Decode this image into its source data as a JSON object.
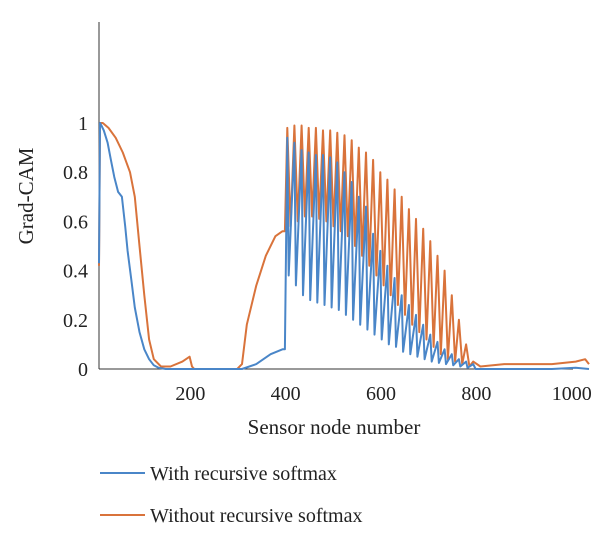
{
  "chart_data": {
    "type": "line",
    "title": "",
    "xlabel": "Sensor node number",
    "ylabel": "Grad-CAM",
    "xlim": [
      0,
      1030
    ],
    "ylim": [
      0,
      1.3
    ],
    "x_ticks": [
      200,
      400,
      600,
      800,
      1000
    ],
    "y_ticks": [
      0,
      0.2,
      0.4,
      0.6,
      0.8,
      1
    ],
    "y_tick_labels": [
      "0",
      "0.2",
      "0.4",
      "0.6",
      "0.8",
      "1"
    ],
    "grid": false,
    "legend_position": "bottom",
    "series": [
      {
        "name": "With recursive softmax",
        "color": "#4a86c8",
        "x": [
          0,
          2,
          5,
          10,
          18,
          25,
          32,
          40,
          48,
          55,
          60,
          68,
          75,
          85,
          95,
          105,
          115,
          125,
          140,
          160,
          200,
          250,
          300,
          330,
          360,
          385,
          390,
          395,
          398,
          410,
          413,
          425,
          428,
          440,
          443,
          455,
          458,
          470,
          473,
          485,
          488,
          500,
          503,
          515,
          518,
          530,
          533,
          545,
          548,
          560,
          563,
          575,
          578,
          590,
          593,
          605,
          608,
          620,
          623,
          635,
          638,
          650,
          653,
          665,
          668,
          680,
          683,
          695,
          698,
          710,
          713,
          725,
          728,
          740,
          743,
          755,
          758,
          770,
          773,
          785,
          790,
          800,
          850,
          900,
          950,
          1000,
          1028
        ],
        "y": [
          0.43,
          1.0,
          0.99,
          0.97,
          0.92,
          0.85,
          0.78,
          0.72,
          0.7,
          0.58,
          0.48,
          0.36,
          0.25,
          0.15,
          0.08,
          0.04,
          0.015,
          0.005,
          0.0,
          0.0,
          0.0,
          0.0,
          0.0,
          0.02,
          0.06,
          0.08,
          0.08,
          0.94,
          0.38,
          0.92,
          0.34,
          0.89,
          0.3,
          0.88,
          0.28,
          0.87,
          0.27,
          0.87,
          0.26,
          0.86,
          0.25,
          0.84,
          0.24,
          0.8,
          0.22,
          0.76,
          0.2,
          0.7,
          0.18,
          0.66,
          0.16,
          0.55,
          0.14,
          0.48,
          0.12,
          0.42,
          0.1,
          0.37,
          0.09,
          0.3,
          0.07,
          0.26,
          0.06,
          0.22,
          0.05,
          0.18,
          0.04,
          0.14,
          0.03,
          0.11,
          0.025,
          0.08,
          0.02,
          0.06,
          0.015,
          0.04,
          0.01,
          0.03,
          0.005,
          0.02,
          0.0,
          0.0,
          0.0,
          0.0,
          0.0,
          0.005,
          0.0
        ]
      },
      {
        "name": "Without recursive softmax",
        "color": "#d9733b",
        "x": [
          0,
          2,
          8,
          20,
          35,
          50,
          65,
          75,
          85,
          95,
          105,
          115,
          130,
          150,
          175,
          190,
          195,
          200,
          250,
          290,
          300,
          310,
          330,
          350,
          370,
          385,
          390,
          395,
          402,
          410,
          417,
          425,
          432,
          440,
          447,
          455,
          462,
          470,
          477,
          485,
          492,
          500,
          507,
          515,
          522,
          530,
          537,
          545,
          552,
          560,
          567,
          575,
          582,
          590,
          597,
          605,
          612,
          620,
          627,
          635,
          642,
          650,
          657,
          665,
          672,
          680,
          687,
          695,
          702,
          710,
          717,
          725,
          732,
          740,
          747,
          755,
          762,
          770,
          777,
          785,
          800,
          850,
          900,
          950,
          1000,
          1020,
          1028
        ],
        "y": [
          0.42,
          1.0,
          1.0,
          0.98,
          0.94,
          0.88,
          0.8,
          0.7,
          0.5,
          0.3,
          0.12,
          0.04,
          0.01,
          0.01,
          0.03,
          0.05,
          0.01,
          0.0,
          0.0,
          0.0,
          0.02,
          0.18,
          0.34,
          0.46,
          0.54,
          0.56,
          0.56,
          0.98,
          0.58,
          0.99,
          0.6,
          0.99,
          0.62,
          0.98,
          0.62,
          0.98,
          0.61,
          0.97,
          0.6,
          0.97,
          0.58,
          0.96,
          0.56,
          0.95,
          0.54,
          0.93,
          0.5,
          0.9,
          0.46,
          0.88,
          0.42,
          0.85,
          0.38,
          0.8,
          0.34,
          0.77,
          0.3,
          0.73,
          0.26,
          0.7,
          0.22,
          0.65,
          0.18,
          0.61,
          0.15,
          0.57,
          0.12,
          0.52,
          0.09,
          0.46,
          0.06,
          0.4,
          0.04,
          0.3,
          0.03,
          0.2,
          0.02,
          0.1,
          0.01,
          0.03,
          0.01,
          0.02,
          0.02,
          0.02,
          0.03,
          0.04,
          0.02
        ]
      }
    ]
  }
}
